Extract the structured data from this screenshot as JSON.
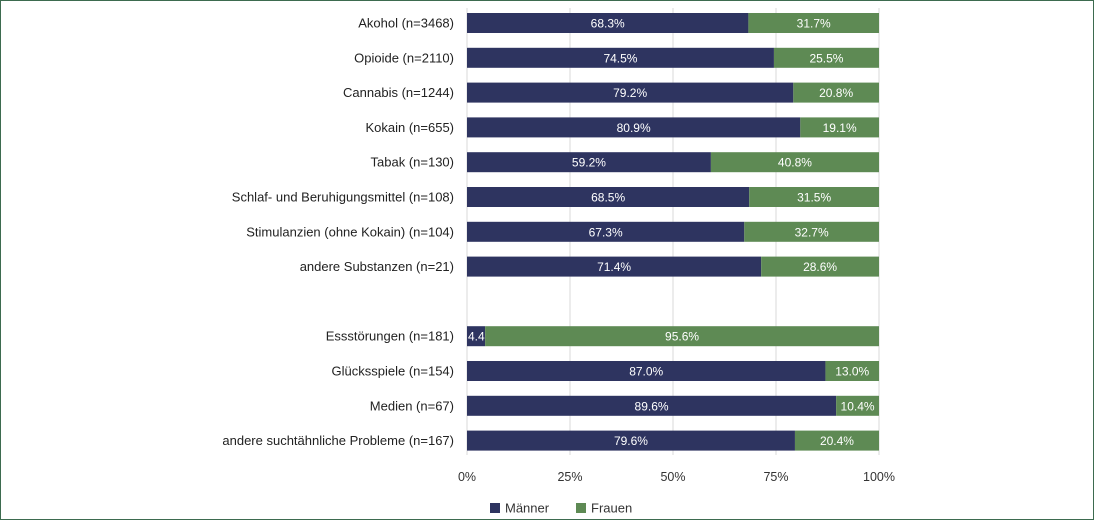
{
  "chart_data": {
    "type": "bar",
    "orientation": "horizontal",
    "stacked": true,
    "categories": [
      "Akohol (n=3468)",
      "Opioide (n=2110)",
      "Cannabis (n=1244)",
      "Kokain (n=655)",
      "Tabak (n=130)",
      "Schlaf- und Beruhigungsmittel (n=108)",
      "Stimulanzien (ohne Kokain) (n=104)",
      "andere Substanzen (n=21)",
      "",
      "Essstörungen (n=181)",
      "Glücksspiele (n=154)",
      "Medien (n=67)",
      "andere suchtähnliche Probleme (n=167)"
    ],
    "series": [
      {
        "name": "Männer",
        "color": "#2e3460",
        "values": [
          68.3,
          74.5,
          79.2,
          80.9,
          59.2,
          68.5,
          67.3,
          71.4,
          null,
          4.4,
          87.0,
          89.6,
          79.6
        ],
        "labels": [
          "68.3%",
          "74.5%",
          "79.2%",
          "80.9%",
          "59.2%",
          "68.5%",
          "67.3%",
          "71.4%",
          "",
          "4.4%",
          "87.0%",
          "89.6%",
          "79.6%"
        ]
      },
      {
        "name": "Frauen",
        "color": "#5e8a54",
        "values": [
          31.7,
          25.5,
          20.8,
          19.1,
          40.8,
          31.5,
          32.7,
          28.6,
          null,
          95.6,
          13.0,
          10.4,
          20.4
        ],
        "labels": [
          "31.7%",
          "25.5%",
          "20.8%",
          "19.1%",
          "40.8%",
          "31.5%",
          "32.7%",
          "28.6%",
          "",
          "95.6%",
          "13.0%",
          "10.4%",
          "20.4%"
        ]
      }
    ],
    "xlim": [
      0,
      100
    ],
    "x_ticks": [
      "0%",
      "25%",
      "50%",
      "75%",
      "100%"
    ],
    "grid": true,
    "legend_position": "bottom"
  }
}
